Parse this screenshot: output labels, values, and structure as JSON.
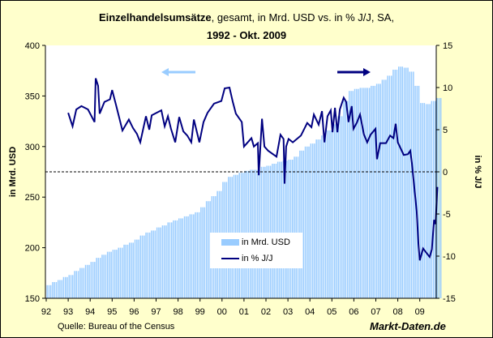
{
  "title": {
    "bold": "Einzelhandelsumsätze",
    "rest": ", gesamt,  in Mrd. USD vs. in % J/J, SA,",
    "line2": "1992 - Okt. 2009"
  },
  "source": "Quelle: Bureau of the Census",
  "brand": "Markt-Daten.de",
  "colors": {
    "bars": "#99CCFF",
    "line": "#000080",
    "background": "#FFFFCC",
    "plot": "#FFFFFF"
  },
  "chart_data": {
    "type": "bar+line",
    "xlabel": "",
    "x_ticks": [
      "92",
      "93",
      "94",
      "95",
      "96",
      "97",
      "98",
      "99",
      "00",
      "01",
      "02",
      "03",
      "04",
      "05",
      "06",
      "07",
      "08",
      "09"
    ],
    "x_range": [
      1992,
      2009.8
    ],
    "y_left": {
      "label": "in Mrd. USD",
      "range": [
        150,
        400
      ],
      "ticks": [
        "150",
        "200",
        "250",
        "300",
        "350",
        "400"
      ]
    },
    "y_right": {
      "label": "in % J/J",
      "range": [
        -15,
        15
      ],
      "ticks": [
        "-15",
        "-10",
        "-5",
        "0",
        "5",
        "10",
        "15"
      ]
    },
    "grid": false,
    "zero_line": "dashed",
    "legend": {
      "position": "bottom-center",
      "entries": [
        "in Mrd. USD",
        "in % J/J"
      ]
    },
    "arrows": {
      "left": "bars → left axis",
      "right": "line → right axis"
    },
    "series": [
      {
        "name": "in Mrd. USD",
        "type": "bar",
        "axis": "left",
        "frequency": "quarterly",
        "start": 1992,
        "values": [
          163,
          166,
          168,
          171,
          173,
          177,
          180,
          183,
          186,
          190,
          193,
          196,
          198,
          200,
          203,
          205,
          208,
          212,
          215,
          217,
          220,
          222,
          225,
          227,
          229,
          231,
          233,
          235,
          240,
          246,
          251,
          256,
          265,
          270,
          272,
          274,
          276,
          277,
          277,
          280,
          281,
          283,
          285,
          286,
          287,
          290,
          296,
          300,
          303,
          307,
          311,
          316,
          322,
          330,
          345,
          355,
          357,
          358,
          358,
          360,
          362,
          366,
          370,
          376,
          379,
          378,
          374,
          360,
          343,
          342,
          345,
          348
        ]
      },
      {
        "name": "in % J/J",
        "type": "line",
        "axis": "right",
        "points": [
          [
            1993.0,
            7.0
          ],
          [
            1993.2,
            5.4
          ],
          [
            1993.37,
            7.4
          ],
          [
            1993.6,
            7.8
          ],
          [
            1993.9,
            7.4
          ],
          [
            1994.2,
            5.9
          ],
          [
            1994.25,
            11.1
          ],
          [
            1994.36,
            10.2
          ],
          [
            1994.43,
            6.9
          ],
          [
            1994.65,
            8.3
          ],
          [
            1994.9,
            8.6
          ],
          [
            1995.0,
            9.7
          ],
          [
            1995.17,
            8.0
          ],
          [
            1995.47,
            4.9
          ],
          [
            1995.76,
            6.2
          ],
          [
            1995.95,
            5.2
          ],
          [
            1996.13,
            4.5
          ],
          [
            1996.28,
            3.5
          ],
          [
            1996.54,
            6.6
          ],
          [
            1996.69,
            5.0
          ],
          [
            1996.8,
            6.7
          ],
          [
            1997.24,
            7.3
          ],
          [
            1997.39,
            5.4
          ],
          [
            1997.54,
            6.6
          ],
          [
            1997.68,
            5.1
          ],
          [
            1997.87,
            3.5
          ],
          [
            1998.05,
            6.5
          ],
          [
            1998.24,
            4.8
          ],
          [
            1998.42,
            4.3
          ],
          [
            1998.6,
            3.5
          ],
          [
            1998.72,
            6.2
          ],
          [
            1998.97,
            3.5
          ],
          [
            1999.16,
            5.9
          ],
          [
            1999.34,
            7.0
          ],
          [
            1999.64,
            8.1
          ],
          [
            1999.97,
            8.4
          ],
          [
            2000.12,
            9.9
          ],
          [
            2000.34,
            10.0
          ],
          [
            2000.49,
            8.3
          ],
          [
            2000.63,
            6.9
          ],
          [
            2000.9,
            5.9
          ],
          [
            2001.0,
            3.0
          ],
          [
            2001.34,
            4.0
          ],
          [
            2001.45,
            3.0
          ],
          [
            2001.63,
            3.4
          ],
          [
            2001.67,
            -0.4
          ],
          [
            2001.82,
            6.3
          ],
          [
            2001.93,
            3.0
          ],
          [
            2002.1,
            2.5
          ],
          [
            2002.48,
            1.8
          ],
          [
            2002.66,
            4.4
          ],
          [
            2002.8,
            3.9
          ],
          [
            2002.85,
            -1.4
          ],
          [
            2002.92,
            3.0
          ],
          [
            2003.03,
            3.9
          ],
          [
            2003.22,
            3.5
          ],
          [
            2003.59,
            4.3
          ],
          [
            2003.88,
            5.8
          ],
          [
            2004.07,
            5.3
          ],
          [
            2004.18,
            6.8
          ],
          [
            2004.4,
            5.6
          ],
          [
            2004.55,
            7.2
          ],
          [
            2004.66,
            3.5
          ],
          [
            2004.8,
            6.6
          ],
          [
            2004.95,
            7.3
          ],
          [
            2005.03,
            4.7
          ],
          [
            2005.14,
            7.6
          ],
          [
            2005.25,
            4.7
          ],
          [
            2005.36,
            7.4
          ],
          [
            2005.54,
            8.8
          ],
          [
            2005.65,
            8.3
          ],
          [
            2005.76,
            5.9
          ],
          [
            2005.9,
            7.8
          ],
          [
            2005.98,
            5.1
          ],
          [
            2006.13,
            5.8
          ],
          [
            2006.28,
            6.8
          ],
          [
            2006.46,
            4.4
          ],
          [
            2006.61,
            3.5
          ],
          [
            2006.76,
            4.4
          ],
          [
            2006.98,
            5.1
          ],
          [
            2007.05,
            1.5
          ],
          [
            2007.2,
            3.4
          ],
          [
            2007.46,
            3.4
          ],
          [
            2007.65,
            4.3
          ],
          [
            2007.8,
            4.0
          ],
          [
            2007.9,
            5.7
          ],
          [
            2008.0,
            3.5
          ],
          [
            2008.27,
            2.0
          ],
          [
            2008.46,
            2.1
          ],
          [
            2008.57,
            2.5
          ],
          [
            2008.64,
            1.1
          ],
          [
            2008.75,
            -1.8
          ],
          [
            2008.86,
            -4.7
          ],
          [
            2008.94,
            -8.6
          ],
          [
            2009.0,
            -10.5
          ],
          [
            2009.15,
            -9.1
          ],
          [
            2009.3,
            -9.6
          ],
          [
            2009.45,
            -10.1
          ],
          [
            2009.55,
            -9.2
          ],
          [
            2009.65,
            -5.7
          ],
          [
            2009.72,
            -6.2
          ],
          [
            2009.8,
            -1.8
          ]
        ]
      }
    ]
  }
}
